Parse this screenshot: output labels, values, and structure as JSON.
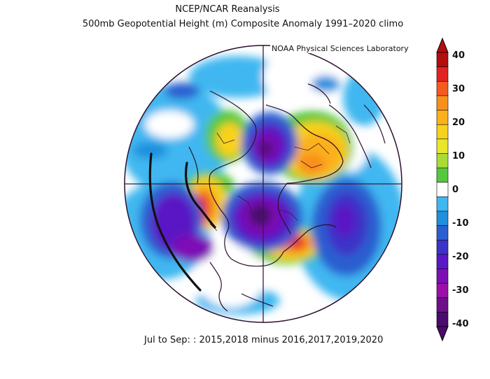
{
  "header": {
    "title": "NCEP/NCAR Reanalysis",
    "subtitle": "500mb Geopotential Height (m) Composite Anomaly 1991–2020 climo",
    "credit": "NOAA Physical Sciences Laboratory"
  },
  "footer": {
    "period": "Jul to Sep: : 2015,2018 minus 2016,2017,2019,2020"
  },
  "map": {
    "projection": "north polar stereographic",
    "annotation": "black hand-drawn lines over the North Pacific"
  },
  "colorbar": {
    "labels": [
      "40",
      "30",
      "20",
      "10",
      "0",
      "-10",
      "-20",
      "-30",
      "-40"
    ],
    "colors": [
      "#b40d0d",
      "#e32222",
      "#f55a1e",
      "#f9901d",
      "#fbb01c",
      "#f8d11a",
      "#e9e62c",
      "#a8dc35",
      "#56c83c",
      "#ffffff",
      "#3fb7f0",
      "#1f8fde",
      "#2a5fd0",
      "#3c33c8",
      "#5a18c4",
      "#7d0fb5",
      "#9b10a8",
      "#6e0f8a",
      "#4a0b6c"
    ]
  },
  "palette": {
    "coast": "#2d0f2d",
    "border": "#3d1a3d",
    "annotation": "#111111"
  }
}
